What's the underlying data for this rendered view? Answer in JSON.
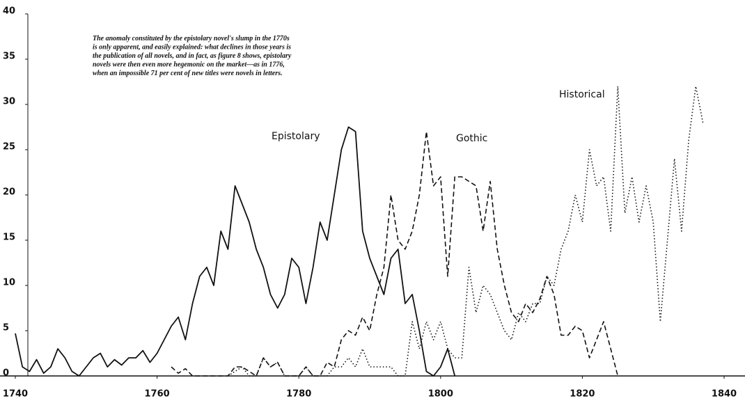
{
  "chart_data": {
    "type": "line",
    "annotations": [
      "The anomaly constituted by the epistolary novel's slump in the 1770s",
      "is only apparent, and easily explained: what declines in those years is",
      "the publication of all novels, and in fact, as figure 8 shows, epistolary",
      "novels were then even more hegemonic on the market—as in 1776,",
      "when an impossible 71 per cent of new titles were novels in letters."
    ],
    "xlim": [
      1740,
      1840
    ],
    "xticks": [
      1740,
      1760,
      1780,
      1800,
      1820,
      1840
    ],
    "ylim": [
      0,
      40
    ],
    "yticks": [
      0,
      5,
      10,
      15,
      20,
      25,
      30,
      35,
      40
    ],
    "series": [
      {
        "name": "Epistolary",
        "color": "#111111",
        "dash": "solid",
        "x": [
          1740,
          1741,
          1742,
          1743,
          1744,
          1745,
          1746,
          1747,
          1748,
          1749,
          1750,
          1751,
          1752,
          1753,
          1754,
          1755,
          1756,
          1757,
          1758,
          1759,
          1760,
          1761,
          1762,
          1763,
          1764,
          1765,
          1766,
          1767,
          1768,
          1769,
          1770,
          1771,
          1772,
          1773,
          1774,
          1775,
          1776,
          1777,
          1778,
          1779,
          1780,
          1781,
          1782,
          1783,
          1784,
          1785,
          1786,
          1787,
          1788,
          1789,
          1790,
          1791,
          1792,
          1793,
          1794,
          1795,
          1796,
          1797,
          1798,
          1799,
          1800,
          1801,
          1802
        ],
        "values": [
          4.7,
          1,
          0.5,
          1.8,
          0.3,
          1,
          3,
          2,
          0.5,
          0,
          1,
          2,
          2.5,
          1,
          1.8,
          1.2,
          2,
          2,
          2.8,
          1.5,
          2.5,
          4,
          5.5,
          6.5,
          4,
          8,
          11,
          12,
          10,
          16,
          14,
          21,
          19,
          17,
          14,
          12,
          9,
          7.5,
          9,
          13,
          12,
          8,
          12,
          17,
          15,
          20,
          25,
          27.5,
          27,
          16,
          13,
          11,
          9,
          13,
          14,
          8,
          9,
          5,
          0.5,
          0,
          1,
          3,
          0
        ]
      },
      {
        "name": "Gothic",
        "color": "#111111",
        "dash": "dashed",
        "x": [
          1762,
          1763,
          1764,
          1765,
          1766,
          1767,
          1768,
          1769,
          1770,
          1771,
          1772,
          1773,
          1774,
          1775,
          1776,
          1777,
          1778,
          1779,
          1780,
          1781,
          1782,
          1783,
          1784,
          1785,
          1786,
          1787,
          1788,
          1789,
          1790,
          1791,
          1792,
          1793,
          1794,
          1795,
          1796,
          1797,
          1798,
          1799,
          1800,
          1801,
          1802,
          1803,
          1804,
          1805,
          1806,
          1807,
          1808,
          1809,
          1810,
          1811,
          1812,
          1813,
          1814,
          1815,
          1816,
          1817,
          1818,
          1819,
          1820,
          1821,
          1822,
          1823,
          1824,
          1825
        ],
        "values": [
          1,
          0.3,
          0.8,
          0,
          0,
          0,
          0,
          0,
          0,
          1,
          1,
          0.5,
          0,
          2,
          1,
          1.5,
          0,
          0,
          0,
          1,
          0,
          0,
          1.5,
          1,
          4,
          5,
          4.5,
          6.5,
          5,
          9,
          12,
          20,
          15,
          14,
          16,
          20,
          27,
          21,
          22,
          11,
          22,
          22,
          21.5,
          21,
          16,
          21.5,
          14,
          10,
          7,
          6,
          8,
          7,
          8.5,
          11,
          9,
          4.5,
          4.5,
          5.5,
          5,
          2,
          4,
          6,
          3,
          0
        ]
      },
      {
        "name": "Historical",
        "color": "#111111",
        "dash": "dotted",
        "x": [
          1770,
          1771,
          1772,
          1773,
          1774,
          1775,
          1776,
          1777,
          1778,
          1779,
          1780,
          1781,
          1782,
          1783,
          1784,
          1785,
          1786,
          1787,
          1788,
          1789,
          1790,
          1791,
          1792,
          1793,
          1794,
          1795,
          1796,
          1797,
          1798,
          1799,
          1800,
          1801,
          1802,
          1803,
          1804,
          1805,
          1806,
          1807,
          1808,
          1809,
          1810,
          1811,
          1812,
          1813,
          1814,
          1815,
          1816,
          1817,
          1818,
          1819,
          1820,
          1821,
          1822,
          1823,
          1824,
          1825,
          1826,
          1827,
          1828,
          1829,
          1830,
          1831,
          1832,
          1833,
          1834,
          1835,
          1836,
          1837
        ],
        "values": [
          0,
          0.5,
          1,
          0,
          0,
          2,
          1,
          1.5,
          0,
          0,
          0,
          1,
          0,
          0,
          0,
          1,
          1,
          2,
          1,
          3,
          1,
          1,
          1,
          1,
          0,
          0,
          6,
          3,
          6,
          4,
          6,
          3,
          2,
          2,
          12,
          7,
          10,
          9,
          7,
          5,
          4,
          7,
          6,
          8,
          8,
          11,
          10,
          14,
          16,
          20,
          17,
          25,
          21,
          22,
          16,
          32,
          18,
          22,
          17,
          21,
          17,
          6,
          15,
          24,
          16,
          26,
          32,
          28
        ]
      }
    ]
  }
}
